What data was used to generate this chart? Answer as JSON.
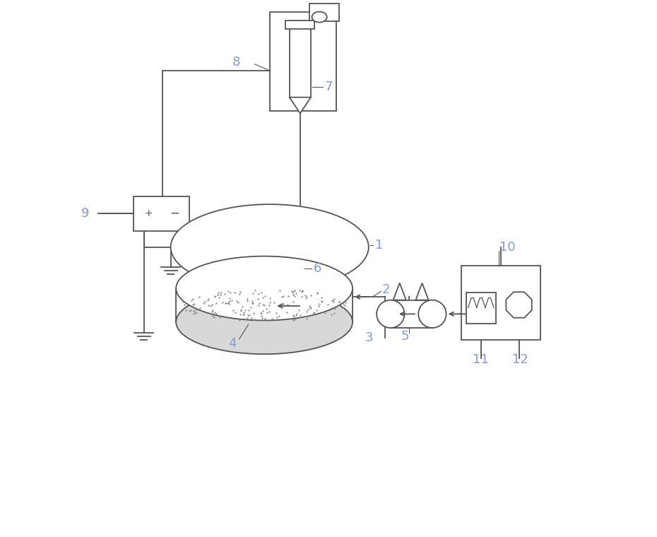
{
  "bg_color": "#ffffff",
  "line_color": "#555555",
  "label_color": "#8899cc",
  "label_fontsize": 13,
  "fig_width": 9.3,
  "fig_height": 7.6,
  "dpi": 100
}
